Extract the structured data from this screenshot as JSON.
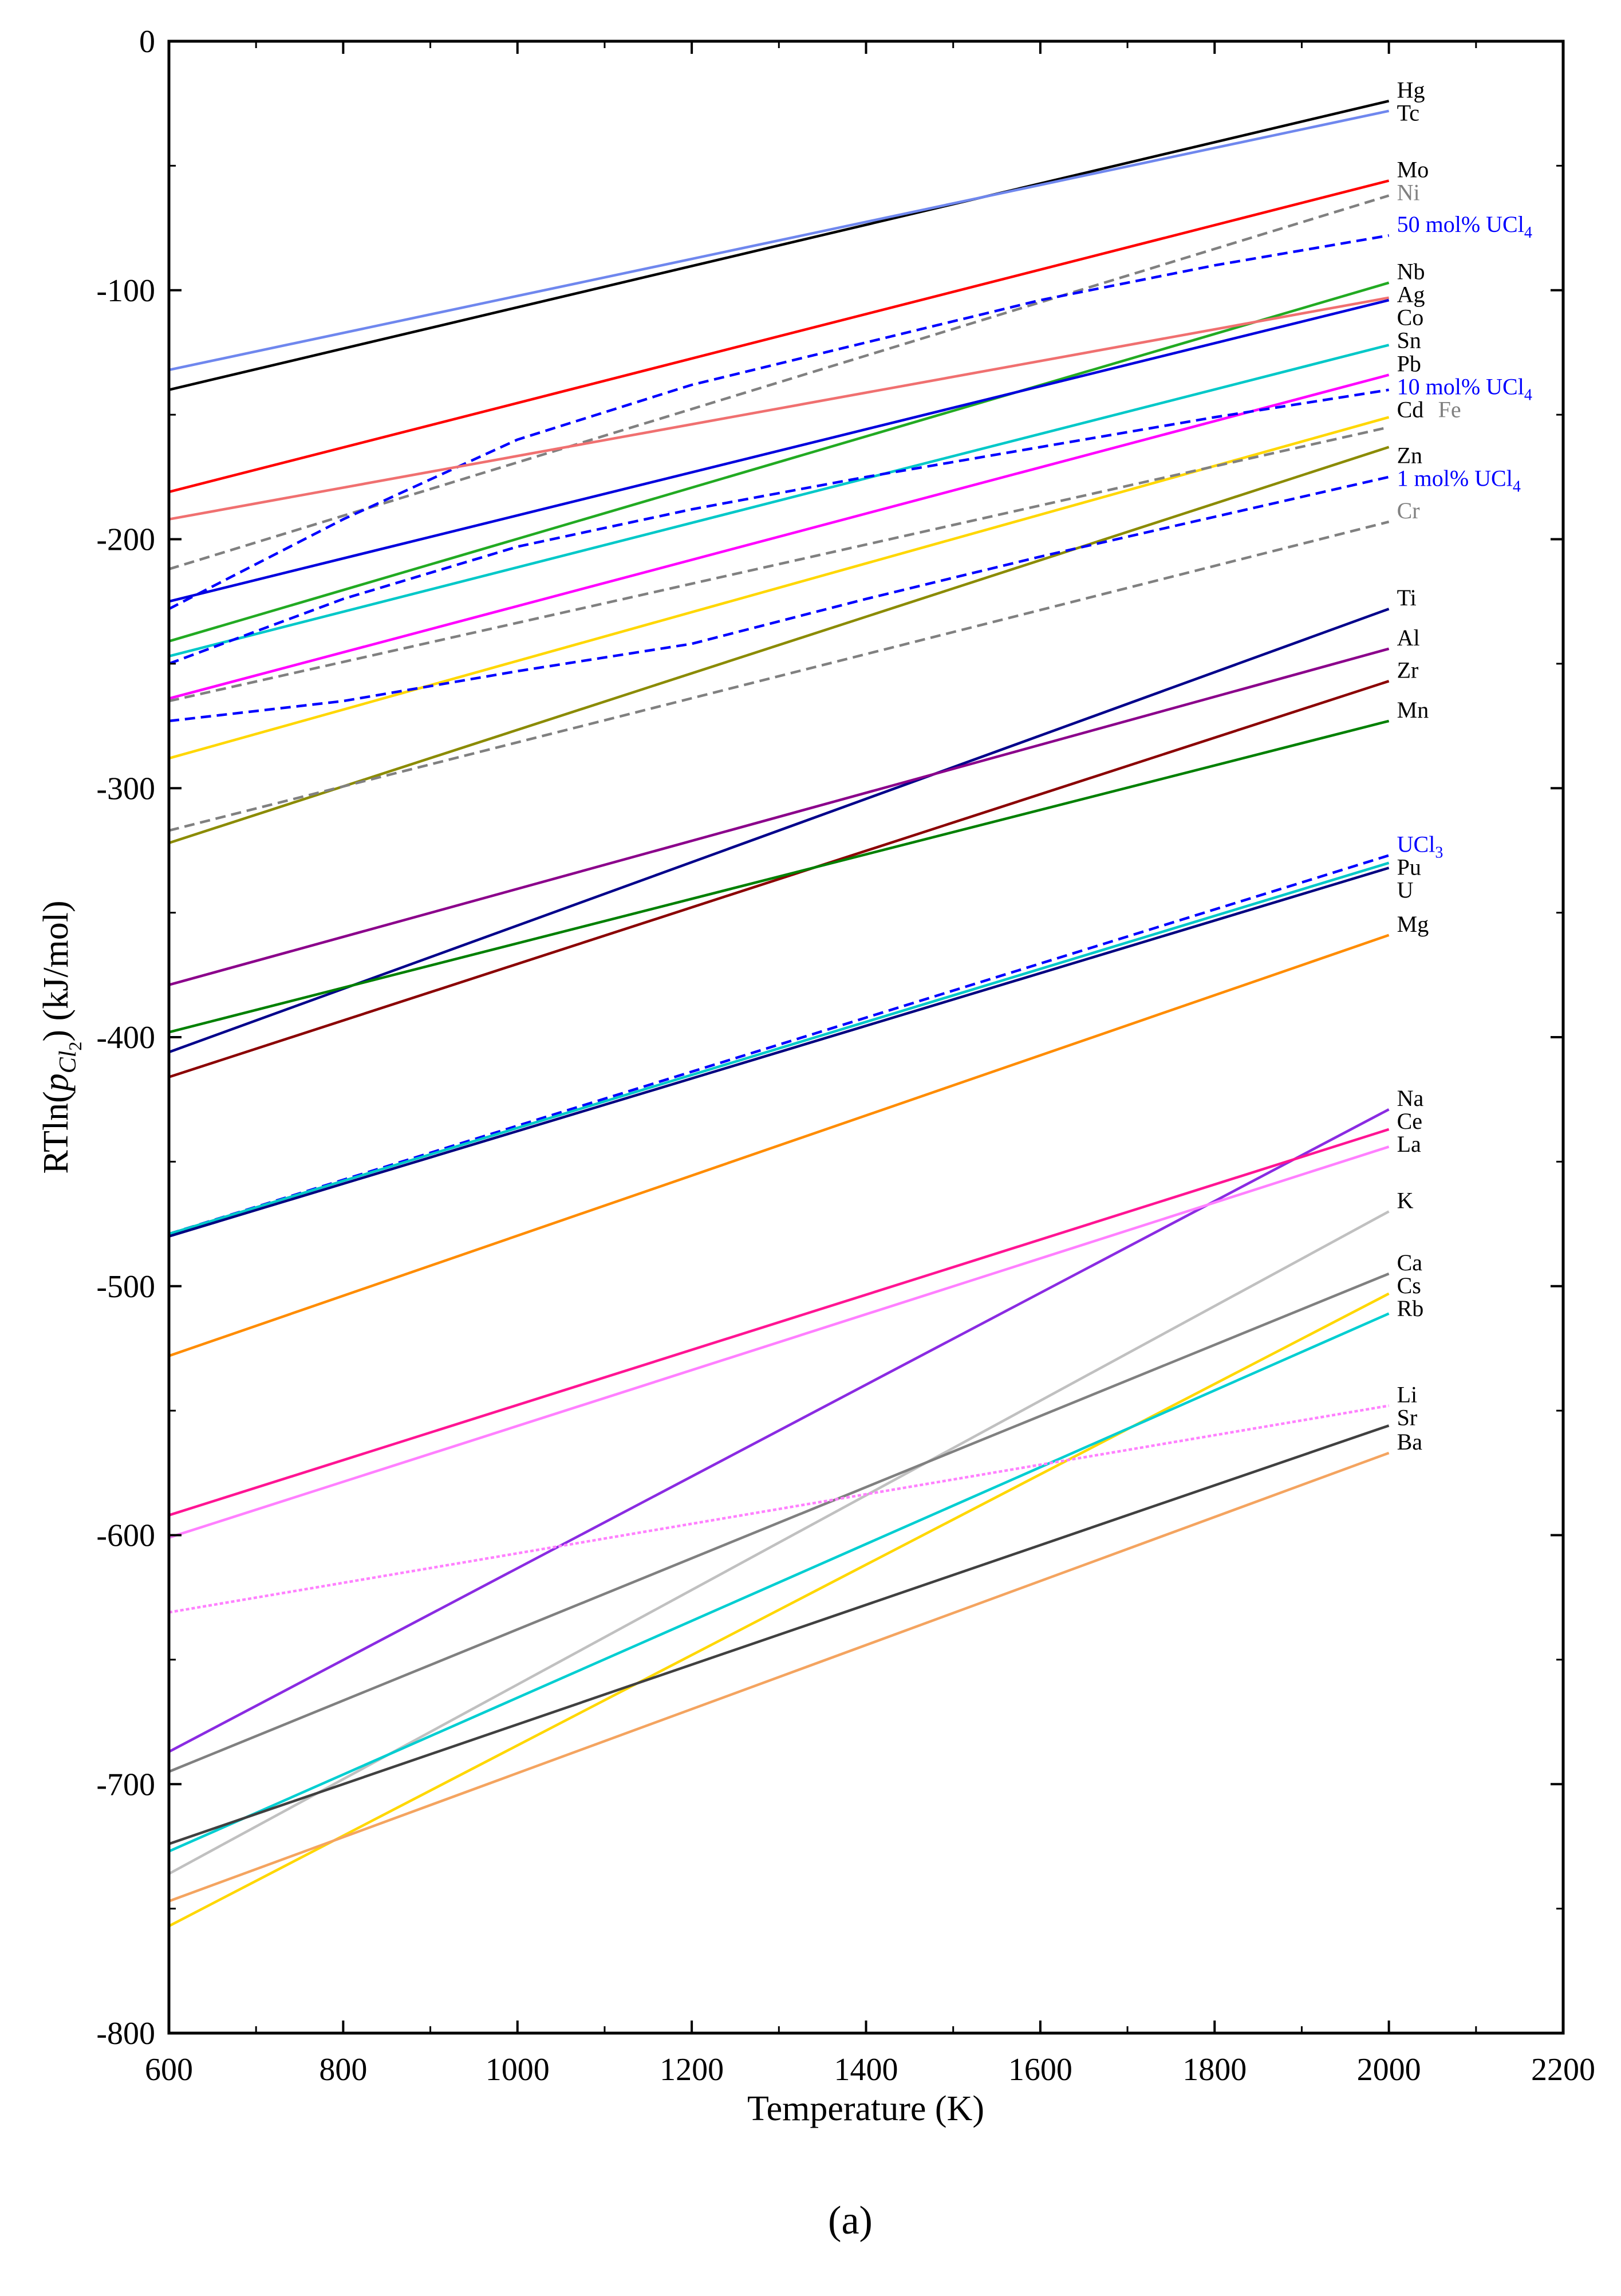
{
  "chart_data": {
    "type": "line",
    "title": "",
    "panel_label": "(a)",
    "xlabel": "Temperature (K)",
    "ylabel": {
      "prefix": "RTln(",
      "symbol": "p",
      "subscript": "Cl",
      "subsubscript": "2",
      "suffix": ") (kJ/mol)"
    },
    "xlim": [
      600,
      2200
    ],
    "ylim": [
      -800,
      0
    ],
    "xticks": [
      600,
      800,
      1000,
      1200,
      1400,
      1600,
      1800,
      2000,
      2200
    ],
    "yticks": [
      0,
      -100,
      -200,
      -300,
      -400,
      -500,
      -600,
      -700,
      -800
    ],
    "grid": false,
    "legend": "inline labels at right end of each line",
    "series": [
      {
        "name": "Hg",
        "color": "#000000",
        "dash": "solid",
        "x": [
          600,
          2000
        ],
        "y": [
          -140,
          -24
        ]
      },
      {
        "name": "Tc",
        "color": "#6f87ee",
        "dash": "solid",
        "x": [
          600,
          2000
        ],
        "y": [
          -132,
          -28
        ],
        "label_color": "#000000"
      },
      {
        "name": "Mo",
        "color": "#ff0000",
        "dash": "solid",
        "x": [
          600,
          2000
        ],
        "y": [
          -181,
          -56
        ],
        "label_color": "#000000"
      },
      {
        "name": "Ni",
        "color": "#808080",
        "dash": "dashed",
        "x": [
          600,
          2000
        ],
        "y": [
          -212,
          -62
        ],
        "label_color": "#808080"
      },
      {
        "name": "50 mol% UCl4",
        "label_main": "50 mol% UCl",
        "label_sub": "4",
        "color": "#0000ff",
        "dash": "dashed",
        "x": [
          600,
          800,
          1000,
          1200,
          1400,
          1600,
          1800,
          2000
        ],
        "y": [
          -228,
          -192,
          -160,
          -138,
          -121,
          -104,
          -90,
          -78
        ],
        "label_color": "#0000ff"
      },
      {
        "name": "Nb",
        "color": "#22aa22",
        "dash": "solid",
        "x": [
          600,
          2000
        ],
        "y": [
          -241,
          -97
        ],
        "label_color": "#000000"
      },
      {
        "name": "Ag",
        "color": "#f07070",
        "dash": "solid",
        "x": [
          600,
          2000
        ],
        "y": [
          -192,
          -103
        ],
        "label_color": "#000000"
      },
      {
        "name": "Co",
        "color": "#0000dd",
        "dash": "solid",
        "x": [
          600,
          2000
        ],
        "y": [
          -225,
          -104
        ],
        "label_color": "#000000"
      },
      {
        "name": "Sn",
        "color": "#00c8c8",
        "dash": "solid",
        "x": [
          600,
          2000
        ],
        "y": [
          -247,
          -122
        ],
        "label_color": "#000000"
      },
      {
        "name": "Pb",
        "color": "#ff00ff",
        "dash": "solid",
        "x": [
          600,
          2000
        ],
        "y": [
          -264,
          -134
        ],
        "label_color": "#000000"
      },
      {
        "name": "10 mol% UCl4",
        "label_main": "10 mol% UCl",
        "label_sub": "4",
        "color": "#0000ff",
        "dash": "dashed",
        "x": [
          600,
          800,
          1000,
          1200,
          1400,
          1600,
          1800,
          2000
        ],
        "y": [
          -250,
          -224,
          -203,
          -188,
          -175,
          -163,
          -151,
          -140
        ],
        "label_color": "#0000ff"
      },
      {
        "name": "Cd",
        "color": "#ffd700",
        "dash": "solid",
        "x": [
          600,
          2000
        ],
        "y": [
          -288,
          -151
        ],
        "label_color": "#000000"
      },
      {
        "name": "Fe",
        "color": "#808080",
        "dash": "dashed",
        "x": [
          600,
          2000
        ],
        "y": [
          -265,
          -155
        ],
        "label_color": "#808080"
      },
      {
        "name": "Zn",
        "color": "#8b8b00",
        "dash": "solid",
        "x": [
          600,
          2000
        ],
        "y": [
          -322,
          -163
        ],
        "label_color": "#000000"
      },
      {
        "name": "1 mol% UCl4",
        "label_main": "1 mol% UCl",
        "label_sub": "4",
        "color": "#0000ff",
        "dash": "dashed",
        "x": [
          600,
          800,
          1000,
          1200,
          1400,
          1600,
          1800,
          2000
        ],
        "y": [
          -273,
          -265,
          -253,
          -242,
          -224,
          -207,
          -191,
          -175
        ],
        "label_color": "#0000ff"
      },
      {
        "name": "Cr",
        "color": "#808080",
        "dash": "dashed",
        "x": [
          600,
          2000
        ],
        "y": [
          -317,
          -193
        ],
        "label_color": "#808080"
      },
      {
        "name": "Ti",
        "color": "#00008b",
        "dash": "solid",
        "x": [
          600,
          2000
        ],
        "y": [
          -406,
          -228
        ],
        "label_color": "#000000"
      },
      {
        "name": "Al",
        "color": "#8b008b",
        "dash": "solid",
        "x": [
          600,
          2000
        ],
        "y": [
          -379,
          -244
        ],
        "label_color": "#000000"
      },
      {
        "name": "Zr",
        "color": "#8b0000",
        "dash": "solid",
        "x": [
          600,
          2000
        ],
        "y": [
          -416,
          -257
        ],
        "label_color": "#000000"
      },
      {
        "name": "Mn",
        "color": "#008000",
        "dash": "solid",
        "x": [
          600,
          2000
        ],
        "y": [
          -398,
          -273
        ],
        "label_color": "#000000"
      },
      {
        "name": "UCl3",
        "label_main": "UCl",
        "label_sub": "3",
        "color": "#0000ff",
        "dash": "dashed",
        "x": [
          600,
          2000
        ],
        "y": [
          -479,
          -327
        ],
        "label_color": "#0000ff"
      },
      {
        "name": "Pu",
        "color": "#00c8c8",
        "dash": "solid",
        "x": [
          600,
          2000
        ],
        "y": [
          -479,
          -330
        ],
        "label_color": "#000000"
      },
      {
        "name": "U",
        "color": "#000080",
        "dash": "solid",
        "x": [
          600,
          2000
        ],
        "y": [
          -480,
          -332
        ],
        "label_color": "#000000"
      },
      {
        "name": "Mg",
        "color": "#ff8c00",
        "dash": "solid",
        "x": [
          600,
          2000
        ],
        "y": [
          -528,
          -359
        ],
        "label_color": "#000000"
      },
      {
        "name": "Na",
        "color": "#8a2be2",
        "dash": "solid",
        "x": [
          600,
          2000
        ],
        "y": [
          -687,
          -429
        ],
        "label_color": "#000000"
      },
      {
        "name": "Ce",
        "color": "#ff1493",
        "dash": "solid",
        "x": [
          600,
          2000
        ],
        "y": [
          -592,
          -437
        ],
        "label_color": "#000000"
      },
      {
        "name": "La",
        "color": "#ff80ff",
        "dash": "solid",
        "x": [
          600,
          2000
        ],
        "y": [
          -601,
          -444
        ],
        "label_color": "#000000"
      },
      {
        "name": "K",
        "color": "#c0c0c0",
        "dash": "solid",
        "x": [
          600,
          2000
        ],
        "y": [
          -736,
          -470
        ],
        "label_color": "#000000"
      },
      {
        "name": "Ca",
        "color": "#808080",
        "dash": "solid",
        "x": [
          600,
          2000
        ],
        "y": [
          -695,
          -495
        ],
        "label_color": "#000000"
      },
      {
        "name": "Cs",
        "color": "#ffd700",
        "dash": "solid",
        "x": [
          600,
          2000
        ],
        "y": [
          -757,
          -503
        ],
        "label_color": "#000000"
      },
      {
        "name": "Rb",
        "color": "#00ced1",
        "dash": "solid",
        "x": [
          600,
          2000
        ],
        "y": [
          -727,
          -511
        ],
        "label_color": "#000000"
      },
      {
        "name": "Li",
        "color": "#ff80ff",
        "dash": "dotted",
        "x": [
          600,
          2000
        ],
        "y": [
          -631,
          -548
        ],
        "label_color": "#000000"
      },
      {
        "name": "Sr",
        "color": "#404040",
        "dash": "solid",
        "x": [
          600,
          2000
        ],
        "y": [
          -724,
          -556
        ],
        "label_color": "#000000"
      },
      {
        "name": "Ba",
        "color": "#f4a460",
        "dash": "solid",
        "x": [
          600,
          2000
        ],
        "y": [
          -747,
          -567
        ],
        "label_color": "#000000"
      }
    ]
  }
}
